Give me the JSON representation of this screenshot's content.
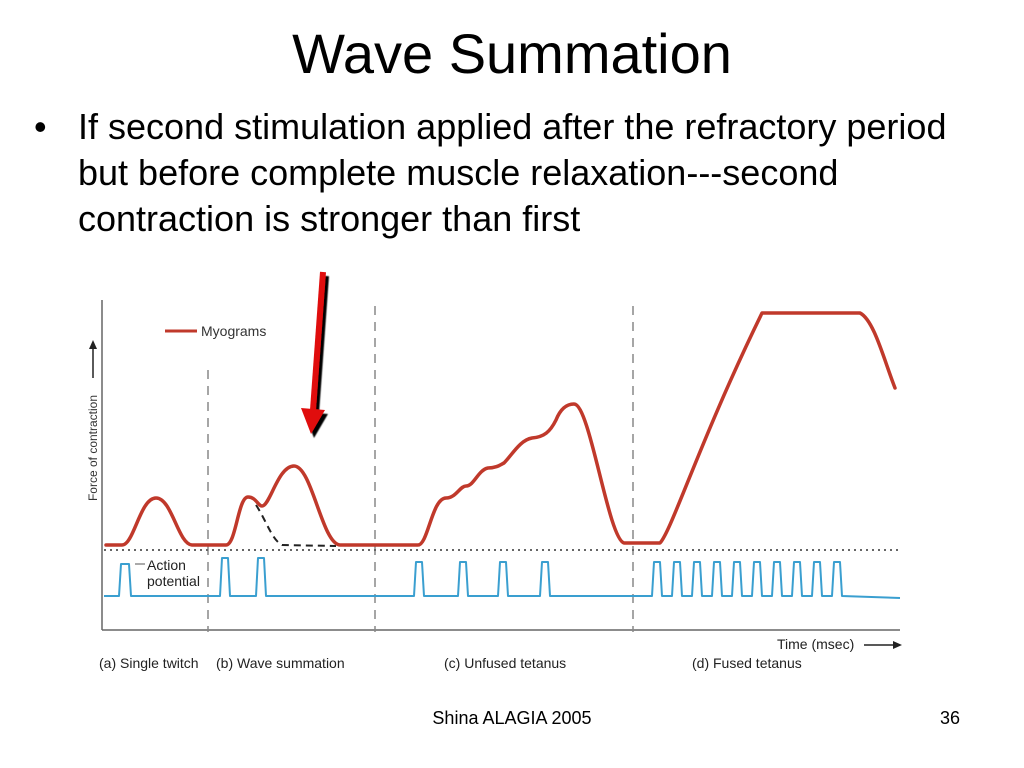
{
  "slide": {
    "title": "Wave Summation",
    "bullets": [
      "If second stimulation applied after the refractory period but before complete muscle relaxation---second contraction is stronger than first"
    ],
    "bullet_symbol": "•"
  },
  "figure": {
    "legend_label": "Myograms",
    "y_axis_label": "Force of contraction",
    "action_potential_label_line1": "Action",
    "action_potential_label_line2": "potential",
    "x_axis_label": "Time (msec)",
    "panels": [
      "(a) Single twitch",
      "(b) Wave summation",
      "(c) Unfused tetanus",
      "(d) Fused tetanus"
    ],
    "colors": {
      "myogram": "#c0392b",
      "action_potential": "#3a9fd0",
      "arrow": "#e01010",
      "divider": "#888888"
    }
  },
  "footer": {
    "credit": "Shina ALAGIA 2005",
    "slide_number": "36"
  }
}
